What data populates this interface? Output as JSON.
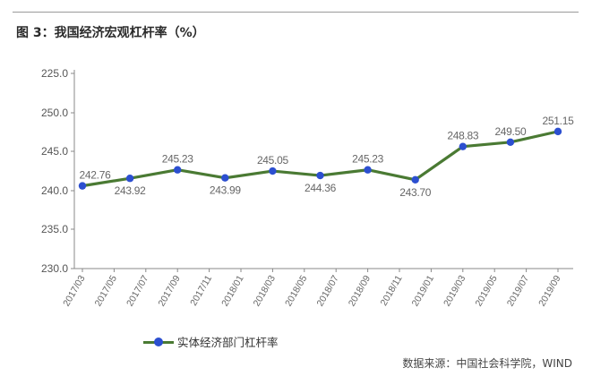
{
  "title": "图 3：我国经济宏观杠杆率（%）",
  "source": "数据来源：中国社会科学院，WIND",
  "colors": {
    "line": "#4a7a33",
    "marker": "#2c4fd0",
    "axis": "#888888"
  },
  "chart_data": {
    "type": "line",
    "title": "图 3：我国经济宏观杠杆率（%）",
    "ylim": [
      230,
      255
    ],
    "y_ticks": [
      "225.0",
      "250.0",
      "245.0",
      "240.0",
      "235.0",
      "230.0"
    ],
    "categories": [
      "2017/03",
      "2017/05",
      "2017/07",
      "2017/09",
      "2017/11",
      "2018/01",
      "2018/03",
      "2018/05",
      "2018/07",
      "2018/09",
      "2018/11",
      "2019/01",
      "2019/03",
      "2019/05",
      "2019/07",
      "2019/09"
    ],
    "grid": false,
    "legend_position": "bottom-left",
    "series": [
      {
        "name": "实体经济部门杠杆率",
        "points": [
          {
            "x": "2017/03",
            "y": 242.76,
            "label": "242.76"
          },
          {
            "x": "2017/06",
            "y": 243.92,
            "label": "243.92"
          },
          {
            "x": "2017/09",
            "y": 245.23,
            "label": "245.23"
          },
          {
            "x": "2017/12",
            "y": 243.99,
            "label": "243.99"
          },
          {
            "x": "2018/03",
            "y": 245.05,
            "label": "245.05"
          },
          {
            "x": "2018/06",
            "y": 244.36,
            "label": "244.36"
          },
          {
            "x": "2018/09",
            "y": 245.23,
            "label": "245.23"
          },
          {
            "x": "2018/12",
            "y": 243.7,
            "label": "243.70"
          },
          {
            "x": "2019/03",
            "y": 248.83,
            "label": "248.83"
          },
          {
            "x": "2019/06",
            "y": 249.5,
            "label": "249.50"
          },
          {
            "x": "2019/09",
            "y": 251.15,
            "label": "251.15"
          }
        ]
      }
    ]
  }
}
